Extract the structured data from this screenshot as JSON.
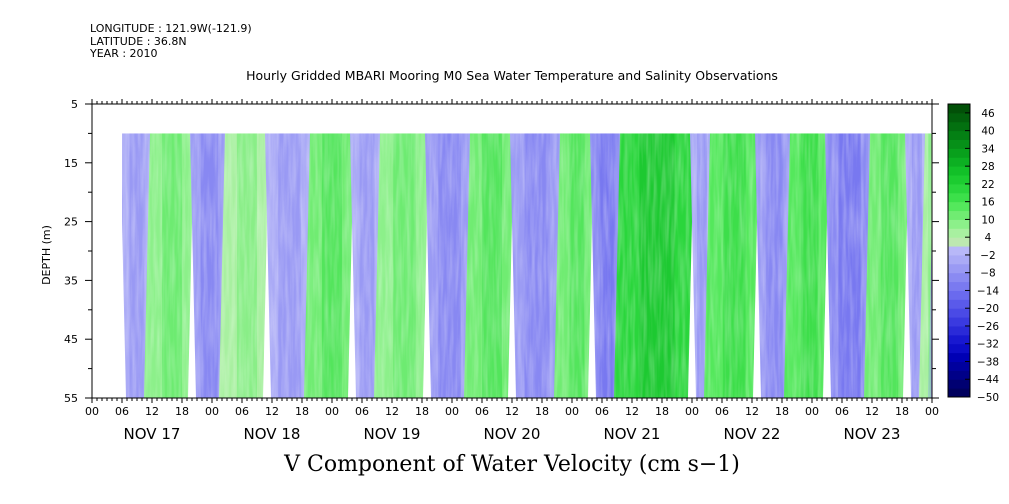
{
  "meta": {
    "longitude": "LONGITUDE : 121.9W(-121.9)",
    "latitude": "LATITUDE : 36.8N",
    "year": "YEAR : 2010"
  },
  "chart_data": {
    "type": "heatmap",
    "title": "Hourly Gridded MBARI Mooring M0 Sea Water Temperature and Salinity Observations",
    "bottom_title": "V Component of Water Velocity (cm s−1)",
    "xlabel": "",
    "ylabel": "DEPTH (m)",
    "y_range": [
      5,
      55
    ],
    "y_inverted": true,
    "y_ticks": [
      5,
      15,
      25,
      35,
      45,
      55
    ],
    "data_depth_range": [
      10,
      55
    ],
    "x_range_hours": [
      0,
      168
    ],
    "data_start_hour": 6,
    "hour_tick_labels": [
      "00",
      "06",
      "12",
      "18",
      "00",
      "06",
      "12",
      "18",
      "00",
      "06",
      "12",
      "18",
      "00",
      "06",
      "12",
      "18",
      "00",
      "06",
      "12",
      "18",
      "00",
      "06",
      "12",
      "18",
      "00",
      "06",
      "12",
      "18",
      "00"
    ],
    "day_labels": [
      "NOV 17",
      "NOV 18",
      "NOV 19",
      "NOV 20",
      "NOV 21",
      "NOV 22",
      "NOV 23"
    ],
    "colorbar_labels": [
      "46",
      "40",
      "34",
      "28",
      "22",
      "16",
      "10",
      "4",
      "−2",
      "−8",
      "−14",
      "−20",
      "−26",
      "−32",
      "−38",
      "−44",
      "−50"
    ],
    "colorbar_levels": [
      -50,
      -47,
      -44,
      -41,
      -38,
      -35,
      -32,
      -29,
      -26,
      -23,
      -20,
      -17,
      -14,
      -11,
      -8,
      -5,
      -2,
      1,
      4,
      7,
      10,
      13,
      16,
      19,
      22,
      25,
      28,
      31,
      34,
      37,
      40,
      43,
      46,
      49
    ],
    "colorbar_colors": [
      "#00005e",
      "#000072",
      "#000088",
      "#00009e",
      "#0000b4",
      "#0c0cc6",
      "#1818d0",
      "#2a2ad8",
      "#3a3ae0",
      "#4a4ae6",
      "#5a5aea",
      "#6a6aee",
      "#7a7af0",
      "#8a8af2",
      "#9a9af4",
      "#aaaaf6",
      "#b8b8f8",
      "#bde8b0",
      "#a8f0a0",
      "#8cf08a",
      "#70ec72",
      "#54e85c",
      "#3ce04a",
      "#2ad63c",
      "#1ccc30",
      "#12c028",
      "#0cb022",
      "#08a01c",
      "#069018",
      "#048014",
      "#037010",
      "#02600c",
      "#025008"
    ],
    "v_velocity_bands": [
      {
        "start_hour": 6,
        "end_hour": 12,
        "v": -5
      },
      {
        "start_hour": 12,
        "end_hour": 20,
        "v": 8
      },
      {
        "start_hour": 20,
        "end_hour": 27,
        "v": -8
      },
      {
        "start_hour": 27,
        "end_hour": 35,
        "v": 6
      },
      {
        "start_hour": 35,
        "end_hour": 44,
        "v": -5
      },
      {
        "start_hour": 44,
        "end_hour": 52,
        "v": 10
      },
      {
        "start_hour": 52,
        "end_hour": 58,
        "v": -4
      },
      {
        "start_hour": 58,
        "end_hour": 67,
        "v": 8
      },
      {
        "start_hour": 67,
        "end_hour": 76,
        "v": -6
      },
      {
        "start_hour": 76,
        "end_hour": 84,
        "v": 10
      },
      {
        "start_hour": 84,
        "end_hour": 94,
        "v": -8
      },
      {
        "start_hour": 94,
        "end_hour": 100,
        "v": 12
      },
      {
        "start_hour": 100,
        "end_hour": 106,
        "v": -10
      },
      {
        "start_hour": 106,
        "end_hour": 120,
        "v": 20
      },
      {
        "start_hour": 120,
        "end_hour": 124,
        "v": -3
      },
      {
        "start_hour": 124,
        "end_hour": 133,
        "v": 14
      },
      {
        "start_hour": 133,
        "end_hour": 140,
        "v": -6
      },
      {
        "start_hour": 140,
        "end_hour": 147,
        "v": 14
      },
      {
        "start_hour": 147,
        "end_hour": 156,
        "v": -10
      },
      {
        "start_hour": 156,
        "end_hour": 163,
        "v": 10
      },
      {
        "start_hour": 163,
        "end_hour": 167,
        "v": -4
      },
      {
        "start_hour": 167,
        "end_hour": 168,
        "v": 6
      }
    ]
  }
}
